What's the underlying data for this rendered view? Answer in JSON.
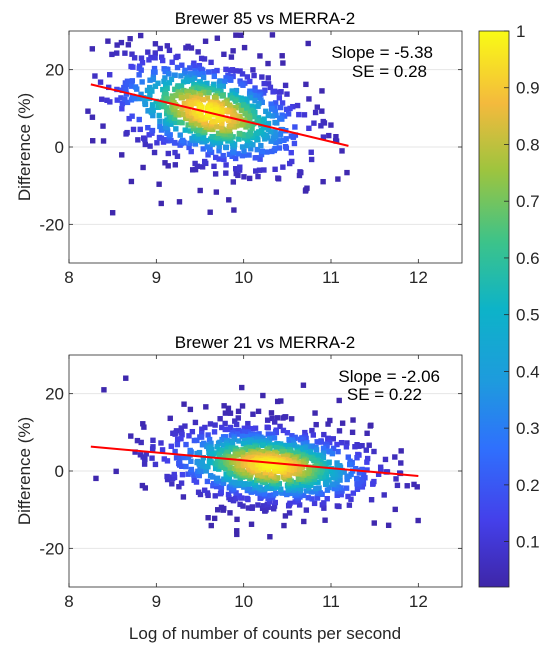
{
  "chart_data": [
    {
      "type": "scatter",
      "title": "Brewer 85 vs MERRA-2",
      "xlabel": "",
      "ylabel": "Difference (%)",
      "xlim": [
        8,
        12.5
      ],
      "ylim": [
        -30,
        30
      ],
      "xticks": [
        "8",
        "9",
        "10",
        "11",
        "12"
      ],
      "yticks": [
        "20",
        "0",
        "-20"
      ],
      "grid": "horizontal",
      "annotations": {
        "slope": "Slope = -5.38",
        "se": "SE = 0.28"
      },
      "fit_line": {
        "x": [
          8.25,
          11.2
        ],
        "y": [
          16.2,
          0.3
        ],
        "color": "#ff0000"
      },
      "density_cluster": {
        "center": [
          9.6,
          9.0
        ],
        "spread": [
          0.55,
          6.5
        ],
        "trend_slope": -5.38,
        "x_range": [
          8.2,
          11.3
        ],
        "y_range": [
          -17,
          29
        ],
        "n_points": 900
      },
      "outliers": [
        [
          8.5,
          -17
        ],
        [
          8.6,
          27
        ],
        [
          8.7,
          28
        ]
      ]
    },
    {
      "type": "scatter",
      "title": "Brewer 21 vs MERRA-2",
      "xlabel": "Log of number of counts per second",
      "ylabel": "Difference (%)",
      "xlim": [
        8,
        12.5
      ],
      "ylim": [
        -30,
        30
      ],
      "xticks": [
        "8",
        "9",
        "10",
        "11",
        "12"
      ],
      "yticks": [
        "20",
        "0",
        "-20"
      ],
      "grid": "horizontal",
      "annotations": {
        "slope": "Slope = -2.06",
        "se": "SE = 0.22"
      },
      "fit_line": {
        "x": [
          8.25,
          12.0
        ],
        "y": [
          6.3,
          -1.3
        ],
        "color": "#ff0000"
      },
      "density_cluster": {
        "center": [
          10.3,
          1.5
        ],
        "spread": [
          0.6,
          5.0
        ],
        "trend_slope": -2.06,
        "x_range": [
          8.2,
          12.05
        ],
        "y_range": [
          -18,
          24
        ],
        "n_points": 1100
      },
      "outliers": [
        [
          8.4,
          21
        ],
        [
          8.65,
          24
        ],
        [
          10.3,
          -17
        ]
      ]
    }
  ],
  "colorbar": {
    "ticks": [
      "1",
      "0.9",
      "0.8",
      "0.7",
      "0.6",
      "0.5",
      "0.4",
      "0.3",
      "0.2",
      "0.1"
    ],
    "values": [
      1,
      0.9,
      0.8,
      0.7,
      0.6,
      0.5,
      0.4,
      0.3,
      0.2,
      0.1
    ],
    "range": [
      0.02,
      1
    ],
    "colormap": "parula"
  }
}
